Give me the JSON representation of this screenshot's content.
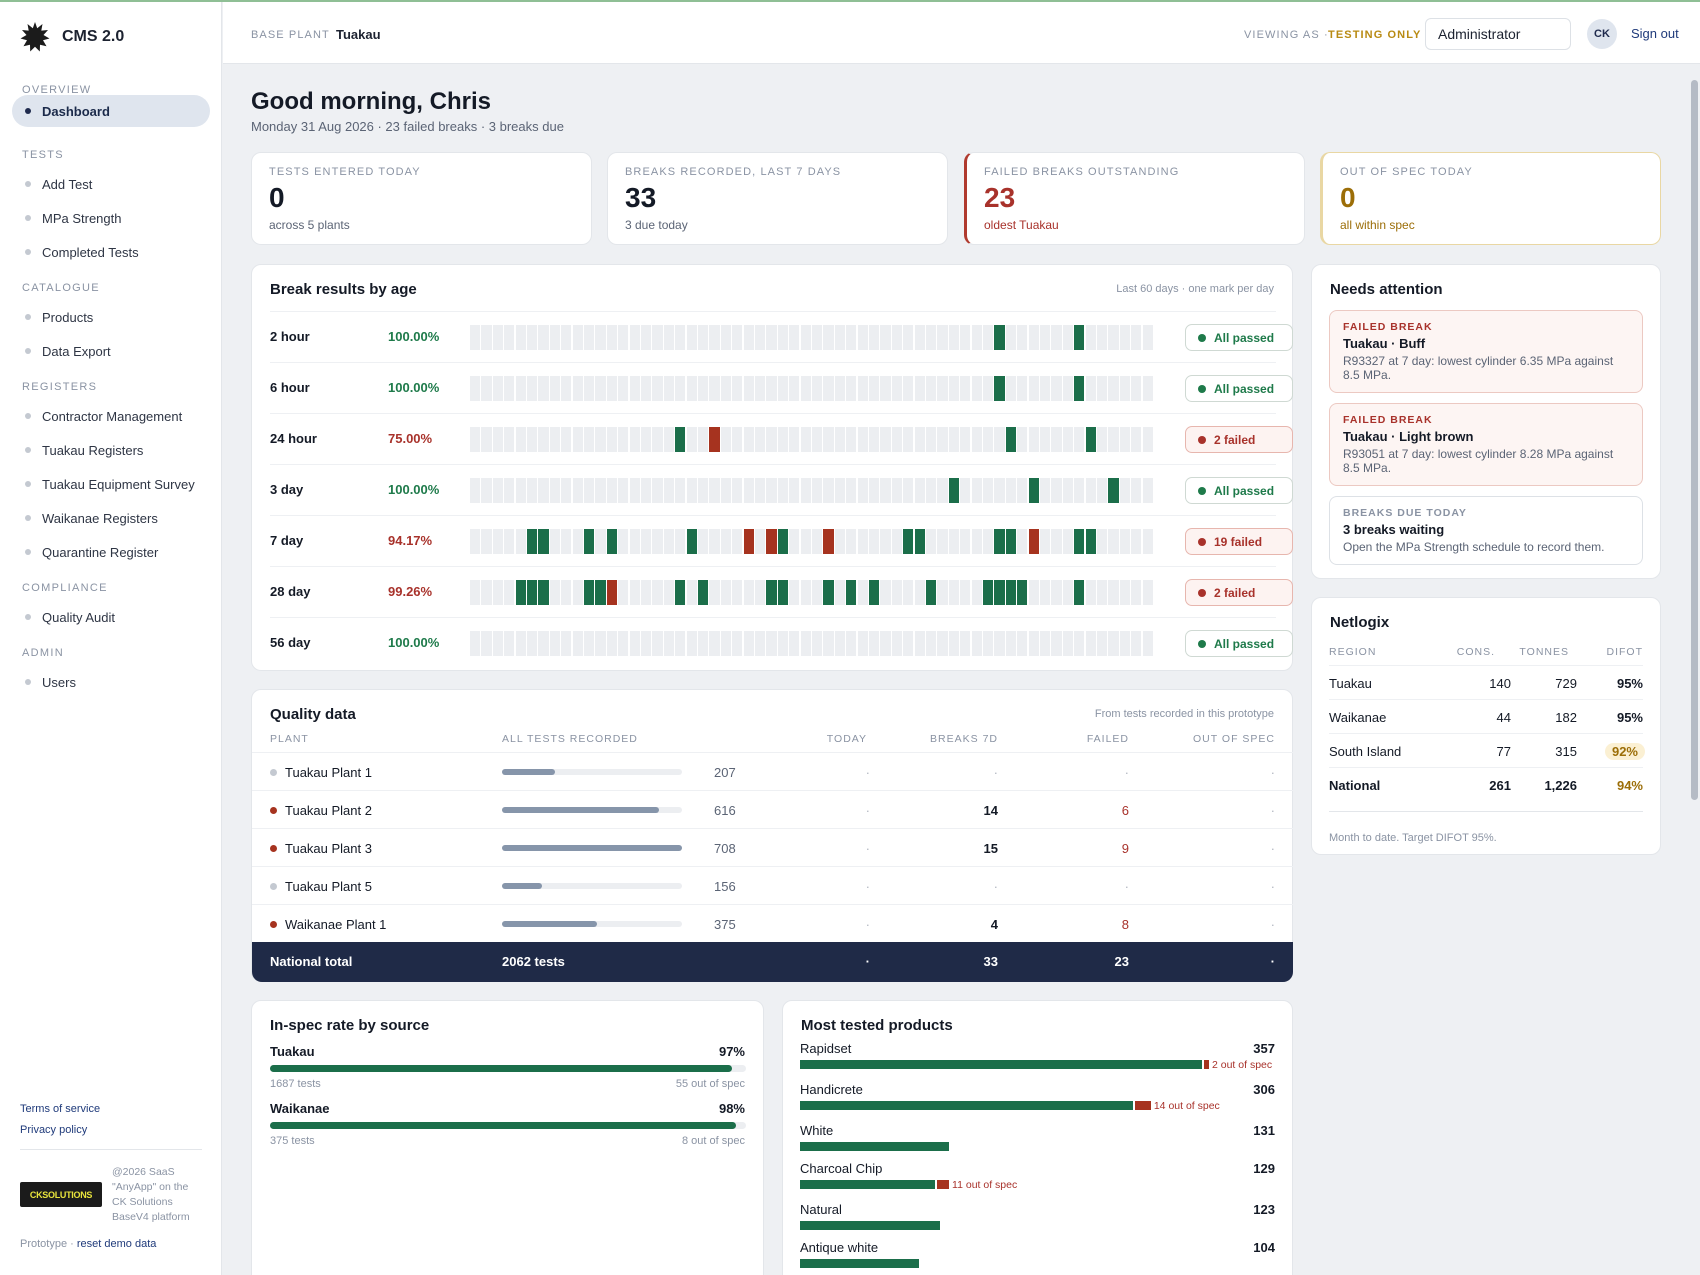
{
  "app": {
    "name": "CMS 2.0"
  },
  "header": {
    "base_plant_label": "BASE PLANT",
    "base_plant": "Tuakau",
    "viewing_as_label": "VIEWING AS ·",
    "viewing_as_mode": "TESTING ONLY",
    "role": "Administrator",
    "avatar": "CK",
    "sign_out": "Sign out"
  },
  "sidebar": {
    "sections": [
      "OVERVIEW",
      "TESTS",
      "CATALOGUE",
      "REGISTERS",
      "COMPLIANCE",
      "ADMIN"
    ],
    "items": [
      {
        "label": "Dashboard"
      },
      {
        "label": "Add Test"
      },
      {
        "label": "MPa Strength"
      },
      {
        "label": "Completed Tests"
      },
      {
        "label": "Products"
      },
      {
        "label": "Data Export"
      },
      {
        "label": "Contractor Management"
      },
      {
        "label": "Tuakau Registers"
      },
      {
        "label": "Tuakau Equipment Survey"
      },
      {
        "label": "Waikanae Registers"
      },
      {
        "label": "Quarantine Register"
      },
      {
        "label": "Quality Audit"
      },
      {
        "label": "Users"
      }
    ],
    "footer": {
      "terms": "Terms of service",
      "privacy": "Privacy policy",
      "logo_ck": "CK",
      "logo_solutions": "SOLUTIONS",
      "copyright": "@2026 SaaS \"AnyApp\" on the CK Solutions BaseV4 platform",
      "prototype": "Prototype ·",
      "reset": "reset demo data"
    }
  },
  "greeting": {
    "title": "Good morning, Chris",
    "subtitle": "Monday 31 Aug 2026 · 23 failed breaks · 3 breaks due"
  },
  "stats": [
    {
      "label": "TESTS ENTERED TODAY",
      "value": "0",
      "sub": "across 5 plants"
    },
    {
      "label": "BREAKS RECORDED, LAST 7 DAYS",
      "value": "33",
      "sub": "3 due today"
    },
    {
      "label": "FAILED BREAKS OUTSTANDING",
      "value": "23",
      "sub": "oldest Tuakau"
    },
    {
      "label": "OUT OF SPEC TODAY",
      "value": "0",
      "sub": "all within spec"
    }
  ],
  "break_results": {
    "title": "Break results by age",
    "note": "Last 60 days · one mark per day",
    "rows": [
      {
        "age": "2 hour",
        "pct": "100.00%",
        "status": "ok",
        "badge": "All passed",
        "pass_days": [
          46,
          53
        ],
        "fail_days": []
      },
      {
        "age": "6 hour",
        "pct": "100.00%",
        "status": "ok",
        "badge": "All passed",
        "pass_days": [
          46,
          53
        ],
        "fail_days": []
      },
      {
        "age": "24 hour",
        "pct": "75.00%",
        "status": "bad",
        "badge": "2 failed",
        "pass_days": [
          18,
          47,
          54
        ],
        "fail_days": [
          21
        ]
      },
      {
        "age": "3 day",
        "pct": "100.00%",
        "status": "ok",
        "badge": "All passed",
        "pass_days": [
          42,
          49,
          56
        ],
        "fail_days": []
      },
      {
        "age": "7 day",
        "pct": "94.17%",
        "status": "bad",
        "badge": "19 failed",
        "pass_days": [
          5,
          6,
          10,
          12,
          19,
          27,
          38,
          39,
          46,
          47,
          53,
          54
        ],
        "fail_days": [
          24,
          26,
          31,
          49
        ]
      },
      {
        "age": "28 day",
        "pct": "99.26%",
        "status": "bad",
        "badge": "2 failed",
        "pass_days": [
          4,
          5,
          6,
          10,
          11,
          18,
          20,
          26,
          27,
          31,
          33,
          35,
          40,
          45,
          46,
          47,
          48,
          53
        ],
        "fail_days": [
          12
        ]
      },
      {
        "age": "56 day",
        "pct": "100.00%",
        "status": "ok",
        "badge": "All passed",
        "pass_days": [],
        "fail_days": []
      }
    ]
  },
  "needs_attention": {
    "title": "Needs attention",
    "items": [
      {
        "kind": "FAILED BREAK",
        "type": "failed",
        "title": "Tuakau · Buff",
        "body": "R93327 at 7 day: lowest cylinder 6.35 MPa against 8.5 MPa."
      },
      {
        "kind": "FAILED BREAK",
        "type": "failed",
        "title": "Tuakau · Light brown",
        "body": "R93051 at 7 day: lowest cylinder 8.28 MPa against 8.5 MPa."
      },
      {
        "kind": "BREAKS DUE TODAY",
        "type": "due",
        "title": "3 breaks waiting",
        "body": "Open the MPa Strength schedule to record them."
      }
    ]
  },
  "netlogix": {
    "title": "Netlogix",
    "columns": [
      "REGION",
      "CONS.",
      "TONNES",
      "DIFOT"
    ],
    "rows": [
      {
        "region": "Tuakau",
        "cons": "140",
        "tonnes": "729",
        "difot": "95%",
        "warn": false
      },
      {
        "region": "Waikanae",
        "cons": "44",
        "tonnes": "182",
        "difot": "95%",
        "warn": false
      },
      {
        "region": "South Island",
        "cons": "77",
        "tonnes": "315",
        "difot": "92%",
        "warn": true
      }
    ],
    "total": {
      "region": "National",
      "cons": "261",
      "tonnes": "1,226",
      "difot": "94%"
    },
    "footnote": "Month to date. Target DIFOT 95%."
  },
  "quality_data": {
    "title": "Quality data",
    "note": "From tests recorded in this prototype",
    "columns": [
      "PLANT",
      "ALL TESTS RECORDED",
      "TODAY",
      "BREAKS 7D",
      "FAILED",
      "OUT OF SPEC"
    ],
    "max_tests": 708,
    "rows": [
      {
        "plant": "Tuakau Plant 1",
        "tests": 207,
        "today": "·",
        "breaks": "·",
        "failed": "·",
        "oos": "·",
        "alert": false
      },
      {
        "plant": "Tuakau Plant 2",
        "tests": 616,
        "today": "·",
        "breaks": "14",
        "failed": "6",
        "oos": "·",
        "alert": true
      },
      {
        "plant": "Tuakau Plant 3",
        "tests": 708,
        "today": "·",
        "breaks": "15",
        "failed": "9",
        "oos": "·",
        "alert": true
      },
      {
        "plant": "Tuakau Plant 5",
        "tests": 156,
        "today": "·",
        "breaks": "·",
        "failed": "·",
        "oos": "·",
        "alert": false
      },
      {
        "plant": "Waikanae Plant 1",
        "tests": 375,
        "today": "·",
        "breaks": "4",
        "failed": "8",
        "oos": "·",
        "alert": true
      }
    ],
    "total": {
      "label": "National total",
      "tests": "2062 tests",
      "today": "·",
      "breaks": "33",
      "failed": "23",
      "oos": "·"
    }
  },
  "in_spec": {
    "title": "In-spec rate by source",
    "sources": [
      {
        "name": "Tuakau",
        "pct": "97%",
        "rate": 0.97,
        "tests": "1687 tests",
        "oos": "55 out of spec"
      },
      {
        "name": "Waikanae",
        "pct": "98%",
        "rate": 0.98,
        "tests": "375 tests",
        "oos": "8 out of spec"
      }
    ]
  },
  "most_tested": {
    "title": "Most tested products",
    "max": 357,
    "products": [
      {
        "name": "Rapidset",
        "count": 357,
        "out_of_spec": 2,
        "oos_label": "2 out of spec"
      },
      {
        "name": "Handicrete",
        "count": 306,
        "out_of_spec": 14,
        "oos_label": "14 out of spec"
      },
      {
        "name": "White",
        "count": 131,
        "out_of_spec": 0,
        "oos_label": ""
      },
      {
        "name": "Charcoal Chip",
        "count": 129,
        "out_of_spec": 11,
        "oos_label": "11 out of spec"
      },
      {
        "name": "Natural",
        "count": 123,
        "out_of_spec": 0,
        "oos_label": ""
      },
      {
        "name": "Antique white",
        "count": 104,
        "out_of_spec": 0,
        "oos_label": ""
      }
    ]
  },
  "colors": {
    "pass": "#1b6e4a",
    "fail": "#a6331f",
    "accent": "#1f2a47",
    "warning": "#9c6e08"
  }
}
